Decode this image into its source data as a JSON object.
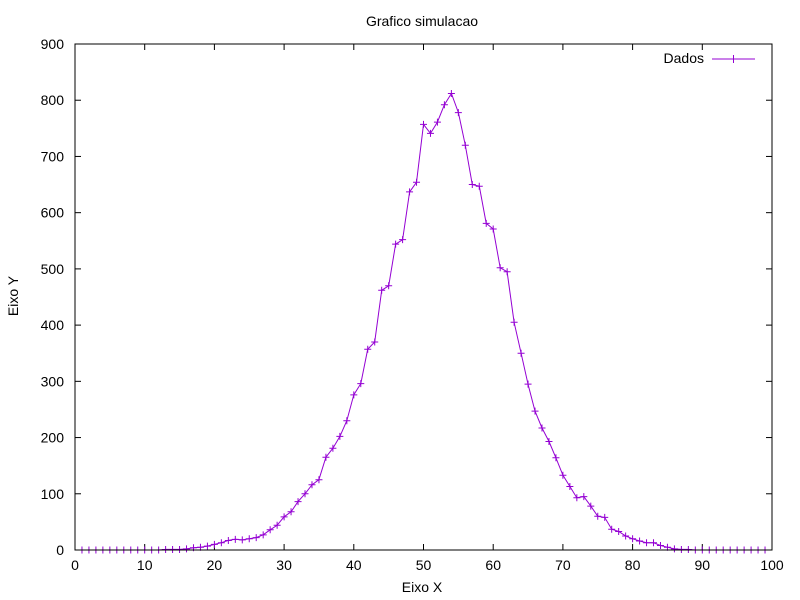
{
  "chart_data": {
    "type": "line",
    "title": "Grafico simulacao",
    "xlabel": "Eixo X",
    "ylabel": "Eixo Y",
    "xlim": [
      0,
      100
    ],
    "ylim": [
      0,
      900
    ],
    "x_ticks": [
      0,
      10,
      20,
      30,
      40,
      50,
      60,
      70,
      80,
      90,
      100
    ],
    "y_ticks": [
      0,
      100,
      200,
      300,
      400,
      500,
      600,
      700,
      800,
      900
    ],
    "x_tick_labels": [
      "0",
      "10",
      "20",
      "30",
      "40",
      "50",
      "60",
      "70",
      "80",
      "90",
      "100"
    ],
    "y_tick_labels": [
      "0",
      "100",
      "200",
      "300",
      "400",
      "500",
      "600",
      "700",
      "800",
      "900"
    ],
    "grid": false,
    "legend_position": "top-right",
    "series": [
      {
        "name": "Dados",
        "color": "#9400d3",
        "marker": "plus",
        "x": [
          1,
          2,
          3,
          4,
          5,
          6,
          7,
          8,
          9,
          10,
          11,
          12,
          13,
          14,
          15,
          16,
          17,
          18,
          19,
          20,
          21,
          22,
          23,
          24,
          25,
          26,
          27,
          28,
          29,
          30,
          31,
          32,
          33,
          34,
          35,
          36,
          37,
          38,
          39,
          40,
          41,
          42,
          43,
          44,
          45,
          46,
          47,
          48,
          49,
          50,
          51,
          52,
          53,
          54,
          55,
          56,
          57,
          58,
          59,
          60,
          61,
          62,
          63,
          64,
          65,
          66,
          67,
          68,
          69,
          70,
          71,
          72,
          73,
          74,
          75,
          76,
          77,
          78,
          79,
          80,
          81,
          82,
          83,
          84,
          85,
          86,
          87,
          88,
          89,
          90,
          91,
          92,
          93,
          94,
          95,
          96,
          97,
          98,
          99
        ],
        "values": [
          0,
          0,
          0,
          0,
          0,
          0,
          0,
          0,
          0,
          0,
          0,
          0,
          1,
          1,
          1,
          2,
          4,
          5,
          7,
          10,
          13,
          17,
          19,
          18,
          20,
          22,
          27,
          36,
          44,
          59,
          68,
          86,
          100,
          116,
          125,
          165,
          181,
          202,
          230,
          276,
          296,
          357,
          370,
          462,
          470,
          544,
          552,
          637,
          654,
          757,
          741,
          761,
          792,
          812,
          778,
          720,
          650,
          647,
          581,
          571,
          502,
          495,
          405,
          350,
          295,
          247,
          217,
          193,
          164,
          133,
          113,
          93,
          95,
          78,
          60,
          58,
          37,
          33,
          25,
          20,
          16,
          13,
          13,
          8,
          5,
          2,
          1,
          1,
          0,
          0,
          0,
          0,
          0,
          0,
          0,
          0,
          0,
          0,
          0
        ]
      }
    ]
  }
}
